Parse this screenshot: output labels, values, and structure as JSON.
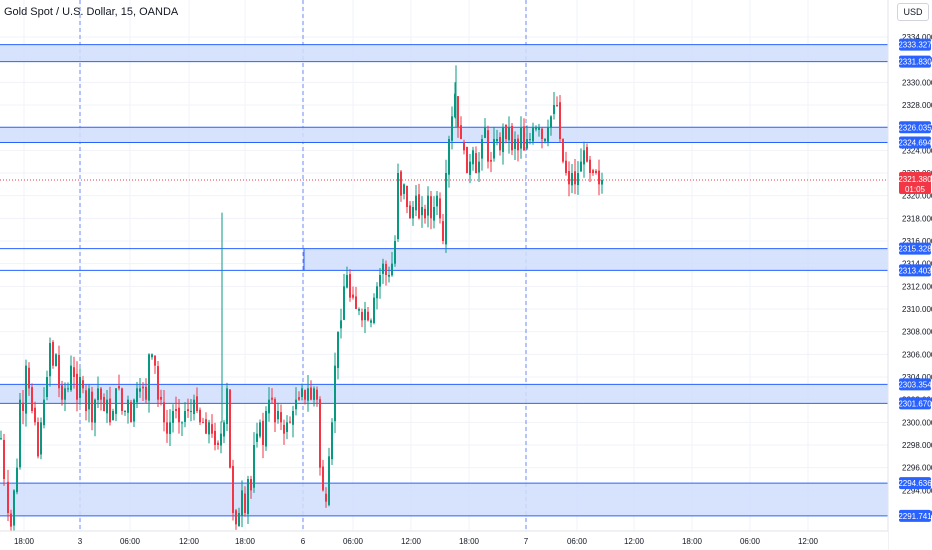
{
  "symbol_title": "Gold Spot / U.S. Dollar, 15, OANDA",
  "currency_button": "USD",
  "price_axis": {
    "ticks": [
      "2334.000",
      "2332.000",
      "2330.000",
      "2328.000",
      "2326.000",
      "2324.000",
      "2322.000",
      "2320.000",
      "2318.000",
      "2316.000",
      "2314.000",
      "2312.000",
      "2310.000",
      "2308.000",
      "2306.000",
      "2304.000",
      "2302.000",
      "2300.000",
      "2298.000",
      "2296.000",
      "2294.000",
      "2292.000"
    ],
    "min": 2290.5,
    "max": 2335.5
  },
  "time_axis": {
    "ticks": [
      "18:00",
      "3",
      "06:00",
      "12:00",
      "18:00",
      "6",
      "06:00",
      "12:00",
      "18:00",
      "7",
      "06:00",
      "12:00",
      "18:00",
      "06:00",
      "12:00"
    ],
    "day_separators": [
      "3",
      "6",
      "7"
    ]
  },
  "current_price": {
    "price": 2321.38,
    "label": "2321.380",
    "countdown": "01:05",
    "color": "#f23645"
  },
  "zones": [
    {
      "top": 2333.327,
      "bottom": 2331.83,
      "top_label": "2333.327",
      "bottom_label": "2331.830"
    },
    {
      "top": 2326.035,
      "bottom": 2324.694,
      "top_label": "2326.035",
      "bottom_label": "2324.694"
    },
    {
      "top": 2315.328,
      "bottom": 2313.403,
      "top_label": "2315.328",
      "bottom_label": "2313.403"
    },
    {
      "top": 2303.354,
      "bottom": 2301.67,
      "top_label": "2303.354",
      "bottom_label": "2301.670"
    },
    {
      "top": 2294.636,
      "bottom": 2291.741,
      "top_label": "2294.636",
      "bottom_label": "2291.741"
    }
  ],
  "colors": {
    "up": "#089981",
    "down": "#f23645",
    "zone_line": "#2962ff",
    "zone_fill": "#d0defd",
    "label_bg": "#2962ff",
    "grid": "#f0f3fa",
    "separator": "#6b8af7"
  },
  "chart_data": {
    "type": "candlestick",
    "symbol": "Gold Spot / U.S. Dollar",
    "interval": "15",
    "ylim": [
      2290.5,
      2335.5
    ],
    "close_path": [
      [
        0,
        2298.6
      ],
      [
        3,
        2295
      ],
      [
        7,
        2292
      ],
      [
        10,
        2290.8
      ],
      [
        13,
        2294
      ],
      [
        16,
        2296
      ],
      [
        19,
        2302
      ],
      [
        22,
        2301
      ],
      [
        25,
        2305
      ],
      [
        28,
        2303
      ],
      [
        31,
        2301
      ],
      [
        34,
        2300
      ],
      [
        37,
        2297
      ],
      [
        40,
        2300
      ],
      [
        43,
        2302
      ],
      [
        46,
        2304
      ],
      [
        49,
        2307
      ],
      [
        52,
        2305
      ],
      [
        55,
        2306
      ],
      [
        58,
        2303
      ],
      [
        61,
        2302
      ],
      [
        64,
        2303
      ],
      [
        67,
        2303
      ],
      [
        70,
        2305
      ],
      [
        73,
        2304
      ],
      [
        76,
        2302
      ],
      [
        79,
        2304
      ],
      [
        82,
        2303
      ],
      [
        85,
        2301
      ],
      [
        88,
        2303
      ],
      [
        91,
        2300
      ],
      [
        94,
        2302
      ],
      [
        97,
        2303
      ],
      [
        100,
        2302
      ],
      [
        103,
        2301
      ],
      [
        106,
        2302
      ],
      [
        109,
        2300
      ],
      [
        112,
        2301
      ],
      [
        115,
        2303
      ],
      [
        118,
        2303
      ],
      [
        121,
        2301
      ],
      [
        124,
        2301
      ],
      [
        127,
        2302
      ],
      [
        130,
        2300
      ],
      [
        133,
        2302
      ],
      [
        136,
        2303
      ],
      [
        139,
        2303
      ],
      [
        142,
        2303
      ],
      [
        145,
        2302
      ],
      [
        148,
        2306
      ],
      [
        151,
        2306
      ],
      [
        154,
        2305
      ],
      [
        157,
        2302
      ],
      [
        160,
        2302
      ],
      [
        163,
        2300
      ],
      [
        166,
        2299
      ],
      [
        169,
        2300
      ],
      [
        172,
        2301
      ],
      [
        175,
        2301
      ],
      [
        178,
        2300
      ],
      [
        181,
        2300
      ],
      [
        184,
        2301
      ],
      [
        187,
        2301
      ],
      [
        190,
        2301
      ],
      [
        193,
        2302
      ],
      [
        196,
        2301
      ],
      [
        199,
        2300
      ],
      [
        202,
        2300
      ],
      [
        205,
        2299
      ],
      [
        208,
        2300
      ],
      [
        211,
        2299
      ],
      [
        214,
        2298
      ],
      [
        217,
        2298
      ],
      [
        220,
        2299
      ],
      [
        223,
        2300
      ],
      [
        226,
        2303
      ],
      [
        229,
        2296
      ],
      [
        232,
        2292
      ],
      [
        235,
        2291
      ],
      [
        238,
        2292
      ],
      [
        241,
        2294
      ],
      [
        244,
        2292
      ],
      [
        247,
        2295
      ],
      [
        250,
        2294
      ],
      [
        253,
        2298
      ],
      [
        256,
        2299
      ],
      [
        259,
        2300
      ],
      [
        262,
        2298
      ],
      [
        265,
        2301
      ],
      [
        268,
        2302
      ],
      [
        271,
        2302
      ],
      [
        274,
        2300
      ],
      [
        277,
        2301
      ],
      [
        280,
        2300
      ],
      [
        283,
        2299
      ],
      [
        286,
        2300
      ],
      [
        289,
        2300
      ],
      [
        292,
        2301
      ],
      [
        295,
        2302
      ],
      [
        298,
        2302
      ],
      [
        301,
        2303
      ],
      [
        304,
        2302
      ],
      [
        307,
        2303
      ],
      [
        310,
        2302
      ],
      [
        313,
        2303
      ],
      [
        316,
        2302
      ],
      [
        319,
        2296
      ],
      [
        322,
        2294
      ],
      [
        325,
        2293
      ],
      [
        328,
        2297
      ],
      [
        331,
        2300
      ],
      [
        334,
        2305
      ],
      [
        337,
        2308
      ],
      [
        340,
        2309
      ],
      [
        343,
        2312
      ],
      [
        346,
        2313
      ],
      [
        349,
        2311
      ],
      [
        352,
        2311
      ],
      [
        355,
        2310
      ],
      [
        358,
        2310
      ],
      [
        361,
        2309
      ],
      [
        364,
        2310
      ],
      [
        367,
        2309
      ],
      [
        370,
        2309
      ],
      [
        373,
        2311
      ],
      [
        376,
        2312
      ],
      [
        379,
        2313
      ],
      [
        382,
        2314
      ],
      [
        385,
        2313
      ],
      [
        388,
        2313
      ],
      [
        391,
        2314
      ],
      [
        394,
        2316
      ],
      [
        397,
        2322
      ],
      [
        400,
        2320
      ],
      [
        403,
        2321
      ],
      [
        406,
        2319
      ],
      [
        409,
        2318
      ],
      [
        412,
        2319
      ],
      [
        415,
        2320
      ],
      [
        418,
        2318
      ],
      [
        421,
        2319
      ],
      [
        424,
        2318
      ],
      [
        427,
        2320
      ],
      [
        430,
        2318
      ],
      [
        433,
        2319
      ],
      [
        436,
        2320
      ],
      [
        439,
        2318
      ],
      [
        442,
        2316
      ],
      [
        445,
        2322
      ],
      [
        448,
        2325
      ],
      [
        451,
        2327
      ],
      [
        454,
        2329
      ],
      [
        457,
        2326
      ],
      [
        460,
        2325
      ],
      [
        463,
        2324
      ],
      [
        466,
        2322
      ],
      [
        469,
        2323
      ],
      [
        472,
        2324
      ],
      [
        475,
        2322
      ],
      [
        478,
        2323
      ],
      [
        481,
        2325
      ],
      [
        484,
        2326
      ],
      [
        487,
        2323
      ],
      [
        490,
        2323
      ],
      [
        493,
        2325
      ],
      [
        496,
        2325
      ],
      [
        499,
        2324
      ],
      [
        502,
        2326
      ],
      [
        505,
        2325
      ],
      [
        508,
        2326
      ],
      [
        511,
        2324
      ],
      [
        514,
        2325
      ],
      [
        517,
        2324
      ],
      [
        520,
        2326
      ],
      [
        523,
        2324
      ],
      [
        526,
        2325
      ],
      [
        529,
        2325
      ],
      [
        532,
        2326
      ],
      [
        535,
        2326
      ],
      [
        538,
        2326
      ],
      [
        541,
        2325
      ],
      [
        544,
        2325
      ],
      [
        547,
        2326
      ],
      [
        550,
        2327
      ],
      [
        553,
        2328
      ],
      [
        556,
        2328
      ],
      [
        559,
        2325
      ],
      [
        562,
        2323
      ],
      [
        565,
        2322
      ],
      [
        568,
        2321
      ],
      [
        571,
        2322
      ],
      [
        574,
        2321
      ],
      [
        577,
        2322
      ],
      [
        580,
        2323
      ],
      [
        583,
        2324
      ],
      [
        586,
        2323
      ],
      [
        589,
        2322
      ],
      [
        592,
        2322
      ],
      [
        595,
        2322
      ],
      [
        598,
        2321
      ],
      [
        601,
        2321.38
      ]
    ]
  }
}
